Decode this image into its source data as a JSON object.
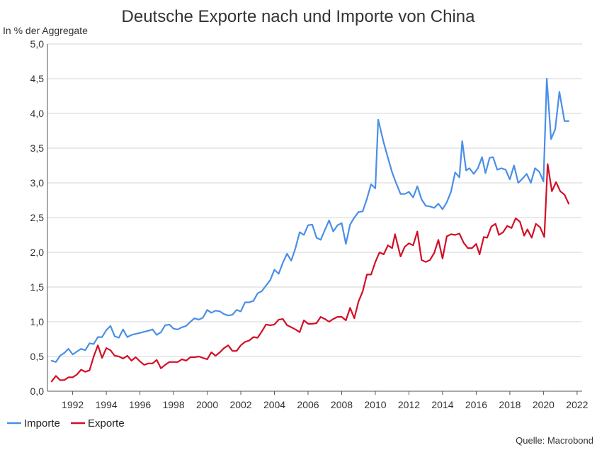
{
  "chart_data": {
    "type": "line",
    "title": "Deutsche Exporte nach und Importe von China",
    "ylabel": "In % der Aggregate",
    "xlabel": "",
    "source": "Quelle: Macrobond",
    "ylim": [
      0,
      5
    ],
    "xlim": [
      1990.5,
      2022.3
    ],
    "y_ticks": [
      "0,0",
      "0,5",
      "1,0",
      "1,5",
      "2,0",
      "2,5",
      "3,0",
      "3,5",
      "4,0",
      "4,5",
      "5,0"
    ],
    "x_ticks": [
      "1992",
      "1994",
      "1996",
      "1998",
      "2000",
      "2002",
      "2004",
      "2006",
      "2008",
      "2010",
      "2012",
      "2014",
      "2016",
      "2018",
      "2020",
      "2022"
    ],
    "grid": true,
    "legend_position": "bottom-left",
    "series": [
      {
        "name": "Importe",
        "color": "#4a8fe7",
        "points": [
          [
            1990.75,
            0.44
          ],
          [
            1991.0,
            0.42
          ],
          [
            1991.25,
            0.51
          ],
          [
            1991.5,
            0.55
          ],
          [
            1991.75,
            0.61
          ],
          [
            1992.0,
            0.53
          ],
          [
            1992.25,
            0.57
          ],
          [
            1992.5,
            0.61
          ],
          [
            1992.75,
            0.59
          ],
          [
            1993.0,
            0.69
          ],
          [
            1993.25,
            0.68
          ],
          [
            1993.5,
            0.78
          ],
          [
            1993.75,
            0.78
          ],
          [
            1994.0,
            0.88
          ],
          [
            1994.25,
            0.94
          ],
          [
            1994.5,
            0.79
          ],
          [
            1994.75,
            0.77
          ],
          [
            1995.0,
            0.89
          ],
          [
            1995.25,
            0.78
          ],
          [
            1995.5,
            0.81
          ],
          [
            1996.0,
            0.84
          ],
          [
            1996.5,
            0.87
          ],
          [
            1996.75,
            0.89
          ],
          [
            1997.0,
            0.81
          ],
          [
            1997.25,
            0.85
          ],
          [
            1997.5,
            0.95
          ],
          [
            1997.75,
            0.96
          ],
          [
            1998.0,
            0.9
          ],
          [
            1998.25,
            0.89
          ],
          [
            1998.5,
            0.92
          ],
          [
            1998.75,
            0.94
          ],
          [
            1999.0,
            1.0
          ],
          [
            1999.25,
            1.05
          ],
          [
            1999.5,
            1.03
          ],
          [
            1999.75,
            1.06
          ],
          [
            2000.0,
            1.17
          ],
          [
            2000.25,
            1.13
          ],
          [
            2000.5,
            1.16
          ],
          [
            2000.75,
            1.15
          ],
          [
            2001.0,
            1.11
          ],
          [
            2001.25,
            1.09
          ],
          [
            2001.5,
            1.1
          ],
          [
            2001.75,
            1.17
          ],
          [
            2002.0,
            1.15
          ],
          [
            2002.25,
            1.28
          ],
          [
            2002.5,
            1.28
          ],
          [
            2002.75,
            1.3
          ],
          [
            2003.0,
            1.41
          ],
          [
            2003.25,
            1.44
          ],
          [
            2003.5,
            1.52
          ],
          [
            2003.75,
            1.6
          ],
          [
            2004.0,
            1.75
          ],
          [
            2004.25,
            1.69
          ],
          [
            2004.5,
            1.85
          ],
          [
            2004.75,
            1.98
          ],
          [
            2005.0,
            1.88
          ],
          [
            2005.25,
            2.06
          ],
          [
            2005.5,
            2.29
          ],
          [
            2005.75,
            2.25
          ],
          [
            2006.0,
            2.39
          ],
          [
            2006.25,
            2.4
          ],
          [
            2006.5,
            2.21
          ],
          [
            2006.75,
            2.18
          ],
          [
            2007.0,
            2.32
          ],
          [
            2007.25,
            2.46
          ],
          [
            2007.5,
            2.3
          ],
          [
            2007.75,
            2.39
          ],
          [
            2008.0,
            2.42
          ],
          [
            2008.25,
            2.12
          ],
          [
            2008.5,
            2.4
          ],
          [
            2008.75,
            2.5
          ],
          [
            2009.0,
            2.58
          ],
          [
            2009.25,
            2.59
          ],
          [
            2009.5,
            2.77
          ],
          [
            2009.75,
            2.98
          ],
          [
            2010.0,
            2.92
          ],
          [
            2010.17,
            3.91
          ],
          [
            2010.5,
            3.58
          ],
          [
            2010.75,
            3.36
          ],
          [
            2011.0,
            3.15
          ],
          [
            2011.25,
            2.99
          ],
          [
            2011.5,
            2.84
          ],
          [
            2011.75,
            2.84
          ],
          [
            2012.0,
            2.87
          ],
          [
            2012.25,
            2.79
          ],
          [
            2012.5,
            2.95
          ],
          [
            2012.75,
            2.76
          ],
          [
            2013.0,
            2.67
          ],
          [
            2013.25,
            2.66
          ],
          [
            2013.5,
            2.64
          ],
          [
            2013.75,
            2.7
          ],
          [
            2014.0,
            2.62
          ],
          [
            2014.25,
            2.72
          ],
          [
            2014.5,
            2.87
          ],
          [
            2014.75,
            3.15
          ],
          [
            2015.0,
            3.08
          ],
          [
            2015.17,
            3.6
          ],
          [
            2015.4,
            3.18
          ],
          [
            2015.6,
            3.21
          ],
          [
            2015.85,
            3.13
          ],
          [
            2016.1,
            3.21
          ],
          [
            2016.35,
            3.37
          ],
          [
            2016.55,
            3.14
          ],
          [
            2016.8,
            3.36
          ],
          [
            2017.0,
            3.37
          ],
          [
            2017.25,
            3.19
          ],
          [
            2017.5,
            3.21
          ],
          [
            2017.75,
            3.19
          ],
          [
            2018.0,
            3.05
          ],
          [
            2018.25,
            3.25
          ],
          [
            2018.5,
            3.0
          ],
          [
            2018.75,
            3.06
          ],
          [
            2019.0,
            3.13
          ],
          [
            2019.25,
            3.0
          ],
          [
            2019.5,
            3.21
          ],
          [
            2019.75,
            3.16
          ],
          [
            2020.0,
            3.02
          ],
          [
            2020.2,
            4.5
          ],
          [
            2020.45,
            3.63
          ],
          [
            2020.7,
            3.77
          ],
          [
            2020.95,
            4.31
          ],
          [
            2021.25,
            3.89
          ],
          [
            2021.5,
            3.89
          ]
        ]
      },
      {
        "name": "Exporte",
        "color": "#d20f26",
        "points": [
          [
            1990.75,
            0.14
          ],
          [
            1991.0,
            0.22
          ],
          [
            1991.25,
            0.16
          ],
          [
            1991.5,
            0.16
          ],
          [
            1991.75,
            0.2
          ],
          [
            1992.0,
            0.2
          ],
          [
            1992.25,
            0.24
          ],
          [
            1992.5,
            0.31
          ],
          [
            1992.75,
            0.28
          ],
          [
            1993.0,
            0.3
          ],
          [
            1993.25,
            0.5
          ],
          [
            1993.5,
            0.66
          ],
          [
            1993.75,
            0.48
          ],
          [
            1994.0,
            0.62
          ],
          [
            1994.25,
            0.59
          ],
          [
            1994.5,
            0.51
          ],
          [
            1994.75,
            0.5
          ],
          [
            1995.0,
            0.47
          ],
          [
            1995.25,
            0.51
          ],
          [
            1995.5,
            0.44
          ],
          [
            1995.75,
            0.49
          ],
          [
            1996.0,
            0.43
          ],
          [
            1996.25,
            0.38
          ],
          [
            1996.5,
            0.4
          ],
          [
            1996.75,
            0.4
          ],
          [
            1997.0,
            0.45
          ],
          [
            1997.25,
            0.33
          ],
          [
            1997.5,
            0.38
          ],
          [
            1997.75,
            0.42
          ],
          [
            1998.0,
            0.42
          ],
          [
            1998.25,
            0.42
          ],
          [
            1998.5,
            0.46
          ],
          [
            1998.75,
            0.44
          ],
          [
            1999.0,
            0.49
          ],
          [
            1999.25,
            0.49
          ],
          [
            1999.5,
            0.5
          ],
          [
            1999.75,
            0.48
          ],
          [
            2000.0,
            0.46
          ],
          [
            2000.25,
            0.56
          ],
          [
            2000.5,
            0.51
          ],
          [
            2000.75,
            0.56
          ],
          [
            2001.0,
            0.62
          ],
          [
            2001.25,
            0.66
          ],
          [
            2001.5,
            0.58
          ],
          [
            2001.75,
            0.58
          ],
          [
            2002.0,
            0.66
          ],
          [
            2002.25,
            0.71
          ],
          [
            2002.5,
            0.73
          ],
          [
            2002.75,
            0.78
          ],
          [
            2003.0,
            0.77
          ],
          [
            2003.25,
            0.86
          ],
          [
            2003.5,
            0.96
          ],
          [
            2003.75,
            0.95
          ],
          [
            2004.0,
            0.96
          ],
          [
            2004.25,
            1.03
          ],
          [
            2004.5,
            1.04
          ],
          [
            2004.75,
            0.95
          ],
          [
            2005.0,
            0.92
          ],
          [
            2005.25,
            0.89
          ],
          [
            2005.5,
            0.85
          ],
          [
            2005.75,
            1.02
          ],
          [
            2006.0,
            0.97
          ],
          [
            2006.25,
            0.97
          ],
          [
            2006.5,
            0.98
          ],
          [
            2006.75,
            1.07
          ],
          [
            2007.0,
            1.04
          ],
          [
            2007.25,
            1.0
          ],
          [
            2007.5,
            1.04
          ],
          [
            2007.75,
            1.07
          ],
          [
            2008.0,
            1.07
          ],
          [
            2008.25,
            1.02
          ],
          [
            2008.5,
            1.2
          ],
          [
            2008.75,
            1.05
          ],
          [
            2009.0,
            1.29
          ],
          [
            2009.25,
            1.44
          ],
          [
            2009.5,
            1.68
          ],
          [
            2009.75,
            1.68
          ],
          [
            2010.0,
            1.86
          ],
          [
            2010.25,
            2.0
          ],
          [
            2010.5,
            1.97
          ],
          [
            2010.75,
            2.1
          ],
          [
            2011.0,
            2.06
          ],
          [
            2011.17,
            2.26
          ],
          [
            2011.5,
            1.94
          ],
          [
            2011.75,
            2.08
          ],
          [
            2012.0,
            2.13
          ],
          [
            2012.25,
            2.1
          ],
          [
            2012.5,
            2.3
          ],
          [
            2012.75,
            1.89
          ],
          [
            2013.0,
            1.86
          ],
          [
            2013.25,
            1.89
          ],
          [
            2013.5,
            1.99
          ],
          [
            2013.75,
            2.18
          ],
          [
            2014.0,
            1.91
          ],
          [
            2014.25,
            2.23
          ],
          [
            2014.5,
            2.26
          ],
          [
            2014.75,
            2.25
          ],
          [
            2015.0,
            2.27
          ],
          [
            2015.25,
            2.14
          ],
          [
            2015.5,
            2.06
          ],
          [
            2015.75,
            2.06
          ],
          [
            2016.0,
            2.12
          ],
          [
            2016.2,
            1.97
          ],
          [
            2016.45,
            2.22
          ],
          [
            2016.65,
            2.21
          ],
          [
            2016.9,
            2.37
          ],
          [
            2017.15,
            2.41
          ],
          [
            2017.35,
            2.25
          ],
          [
            2017.6,
            2.29
          ],
          [
            2017.85,
            2.38
          ],
          [
            2018.1,
            2.35
          ],
          [
            2018.35,
            2.49
          ],
          [
            2018.6,
            2.44
          ],
          [
            2018.85,
            2.24
          ],
          [
            2019.05,
            2.33
          ],
          [
            2019.3,
            2.21
          ],
          [
            2019.55,
            2.41
          ],
          [
            2019.8,
            2.36
          ],
          [
            2020.05,
            2.22
          ],
          [
            2020.25,
            3.27
          ],
          [
            2020.5,
            2.88
          ],
          [
            2020.75,
            3.01
          ],
          [
            2021.0,
            2.88
          ],
          [
            2021.25,
            2.83
          ],
          [
            2021.5,
            2.7
          ]
        ]
      }
    ]
  }
}
